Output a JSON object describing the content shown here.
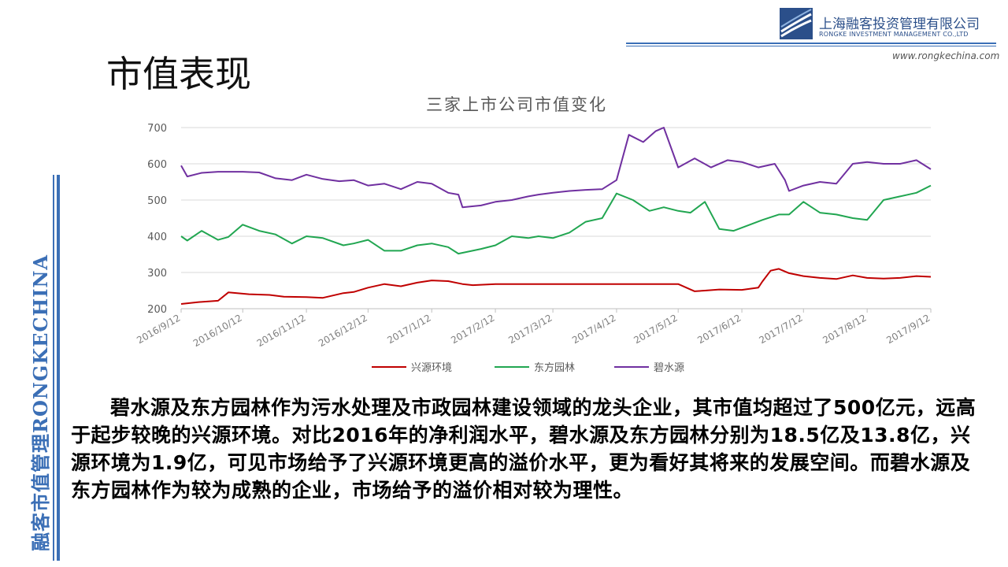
{
  "page": {
    "title": "市值表现",
    "side_label": "融客市值管理RONGKECHINA",
    "company_cn": "上海融客投资管理有限公司",
    "company_en": "RONGKE INVESTMENT MANAGEMENT CO.,LTD",
    "website": "www.rongkechina.com",
    "accent_color": "#3b6fb6",
    "body_text": "碧水源及东方园林作为污水处理及市政园林建设领域的龙头企业，其市值均超过了500亿元，远高于起步较晚的兴源环境。对比2016年的净利润水平，碧水源及东方园林分别为18.5亿及13.8亿，兴源环境为1.9亿，可见市场给予了兴源环境更高的溢价水平，更为看好其将来的发展空间。而碧水源及东方园林作为较为成熟的企业，市场给予的溢价相对较为理性。"
  },
  "chart_data": {
    "type": "line",
    "title": "三家上市公司市值变化",
    "xlabel": "",
    "ylabel": "",
    "ylim": [
      200,
      700
    ],
    "yticks": [
      200,
      300,
      400,
      500,
      600,
      700
    ],
    "xlim": [
      "2016/9/12",
      "2017/9/12"
    ],
    "x_ticks": [
      "2016/9/12",
      "2016/10/12",
      "2016/11/12",
      "2016/12/12",
      "2017/1/12",
      "2017/2/12",
      "2017/3/12",
      "2017/4/12",
      "2017/5/12",
      "2017/6/12",
      "2017/7/12",
      "2017/8/12",
      "2017/9/12"
    ],
    "grid": "horizontal",
    "legend": "bottom",
    "series": [
      {
        "name": "兴源环境",
        "color": "#c00000",
        "x": [
          "2016/9/12",
          "2016/9/20",
          "2016/9/30",
          "2016/10/5",
          "2016/10/15",
          "2016/10/25",
          "2016/11/1",
          "2016/11/12",
          "2016/11/20",
          "2016/11/30",
          "2016/12/5",
          "2016/12/12",
          "2016/12/20",
          "2016/12/28",
          "2017/1/5",
          "2017/1/12",
          "2017/1/20",
          "2017/1/27",
          "2017/2/1",
          "2017/2/12",
          "2017/3/12",
          "2017/4/12",
          "2017/5/12",
          "2017/5/20",
          "2017/5/25",
          "2017/6/1",
          "2017/6/12",
          "2017/6/20",
          "2017/6/22",
          "2017/6/26",
          "2017/6/30",
          "2017/7/5",
          "2017/7/12",
          "2017/7/20",
          "2017/7/28",
          "2017/8/5",
          "2017/8/12",
          "2017/8/20",
          "2017/8/28",
          "2017/9/5",
          "2017/9/12"
        ],
        "values": [
          213,
          218,
          222,
          245,
          240,
          238,
          233,
          232,
          230,
          243,
          246,
          258,
          268,
          262,
          272,
          278,
          276,
          268,
          265,
          268,
          268,
          268,
          268,
          248,
          250,
          253,
          252,
          258,
          275,
          305,
          310,
          298,
          290,
          285,
          282,
          292,
          285,
          283,
          285,
          290,
          288
        ]
      },
      {
        "name": "东方园林",
        "color": "#21a651",
        "x": [
          "2016/9/12",
          "2016/9/15",
          "2016/9/22",
          "2016/9/30",
          "2016/10/5",
          "2016/10/12",
          "2016/10/20",
          "2016/10/28",
          "2016/11/5",
          "2016/11/12",
          "2016/11/20",
          "2016/11/30",
          "2016/12/5",
          "2016/12/12",
          "2016/12/20",
          "2016/12/28",
          "2017/1/5",
          "2017/1/12",
          "2017/1/20",
          "2017/1/25",
          "2017/2/5",
          "2017/2/12",
          "2017/2/20",
          "2017/2/28",
          "2017/3/5",
          "2017/3/12",
          "2017/3/20",
          "2017/3/28",
          "2017/4/5",
          "2017/4/12",
          "2017/4/20",
          "2017/4/28",
          "2017/5/5",
          "2017/5/12",
          "2017/5/18",
          "2017/5/25",
          "2017/6/1",
          "2017/6/8",
          "2017/6/15",
          "2017/6/22",
          "2017/6/30",
          "2017/7/5",
          "2017/7/12",
          "2017/7/20",
          "2017/7/28",
          "2017/8/5",
          "2017/8/12",
          "2017/8/20",
          "2017/8/28",
          "2017/9/5",
          "2017/9/12"
        ],
        "values": [
          400,
          388,
          415,
          390,
          398,
          432,
          415,
          405,
          380,
          400,
          395,
          375,
          380,
          390,
          360,
          360,
          375,
          380,
          370,
          352,
          365,
          375,
          400,
          395,
          400,
          395,
          410,
          440,
          450,
          518,
          500,
          470,
          480,
          470,
          465,
          495,
          420,
          415,
          430,
          445,
          460,
          460,
          495,
          465,
          460,
          450,
          445,
          500,
          510,
          520,
          540
        ]
      },
      {
        "name": "碧水源",
        "color": "#7030a0",
        "x": [
          "2016/9/12",
          "2016/9/15",
          "2016/9/22",
          "2016/9/30",
          "2016/10/12",
          "2016/10/20",
          "2016/10/28",
          "2016/11/5",
          "2016/11/12",
          "2016/11/20",
          "2016/11/28",
          "2016/12/5",
          "2016/12/12",
          "2016/12/20",
          "2016/12/28",
          "2017/1/5",
          "2017/1/12",
          "2017/1/20",
          "2017/1/25",
          "2017/1/27",
          "2017/2/5",
          "2017/2/12",
          "2017/2/20",
          "2017/2/28",
          "2017/3/5",
          "2017/3/12",
          "2017/3/20",
          "2017/3/28",
          "2017/4/5",
          "2017/4/12",
          "2017/4/18",
          "2017/4/25",
          "2017/5/1",
          "2017/5/5",
          "2017/5/12",
          "2017/5/20",
          "2017/5/28",
          "2017/6/5",
          "2017/6/12",
          "2017/6/20",
          "2017/6/28",
          "2017/7/3",
          "2017/7/5",
          "2017/7/12",
          "2017/7/20",
          "2017/7/28",
          "2017/8/5",
          "2017/8/12",
          "2017/8/20",
          "2017/8/28",
          "2017/9/5",
          "2017/9/12"
        ],
        "values": [
          595,
          565,
          575,
          578,
          578,
          576,
          560,
          555,
          570,
          558,
          552,
          555,
          540,
          545,
          530,
          550,
          545,
          520,
          515,
          480,
          485,
          495,
          500,
          510,
          515,
          520,
          525,
          528,
          530,
          555,
          680,
          660,
          690,
          700,
          590,
          615,
          590,
          610,
          605,
          590,
          600,
          555,
          525,
          540,
          550,
          545,
          600,
          605,
          600,
          600,
          610,
          585
        ]
      }
    ]
  }
}
